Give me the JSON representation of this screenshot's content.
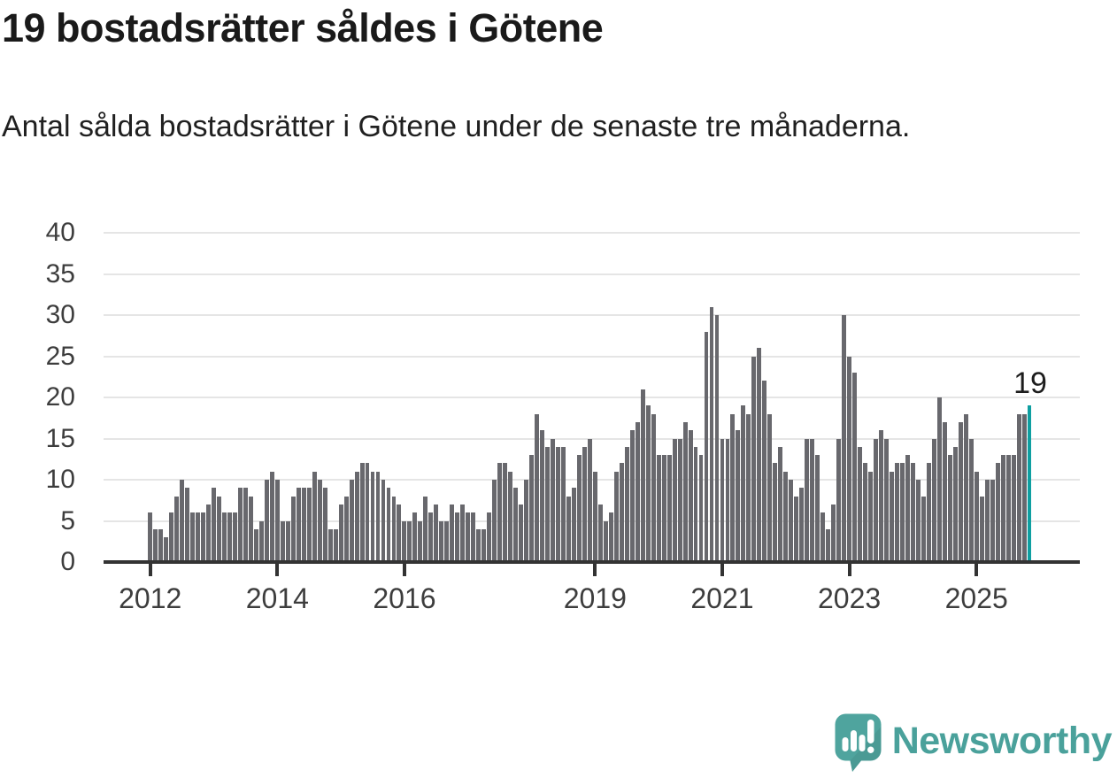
{
  "title": "19 bostadsrätter såldes i Götene",
  "subtitle": "Antal sålda bostadsrätter i Götene under de senaste tre månaderna.",
  "logo": {
    "text": "Newsworthy"
  },
  "colors": {
    "bar": "#68686d",
    "highlight_bar": "#0e9fa1",
    "gridline": "#e5e5e5",
    "axis": "#333333",
    "axis_label": "#3d3d3d",
    "title": "#1a1a1a",
    "subtitle": "#202020",
    "annotation": "#1d1d1d",
    "logo_teal": "#4aa19b"
  },
  "chart_data": {
    "type": "bar",
    "title": "19 bostadsrätter såldes i Götene",
    "subtitle": "Antal sålda bostadsrätter i Götene under de senaste tre månaderna.",
    "x_start": "2012-01",
    "x_end": "2025-11",
    "x_frequency": "monthly",
    "ylim": [
      0,
      40
    ],
    "y_ticks": [
      0,
      5,
      10,
      15,
      20,
      25,
      30,
      35,
      40
    ],
    "grid": true,
    "legend": false,
    "x_ticks": [
      {
        "label": "2012",
        "month_index": 0
      },
      {
        "label": "2014",
        "month_index": 24
      },
      {
        "label": "2016",
        "month_index": 48
      },
      {
        "label": "2019",
        "month_index": 84
      },
      {
        "label": "2021",
        "month_index": 108
      },
      {
        "label": "2023",
        "month_index": 132
      },
      {
        "label": "2025",
        "month_index": 156
      }
    ],
    "values": [
      6,
      4,
      4,
      3,
      6,
      8,
      10,
      9,
      6,
      6,
      6,
      7,
      9,
      8,
      6,
      6,
      6,
      9,
      9,
      8,
      4,
      5,
      10,
      11,
      10,
      5,
      5,
      8,
      9,
      9,
      9,
      11,
      10,
      9,
      4,
      4,
      7,
      8,
      10,
      11,
      12,
      12,
      11,
      11,
      10,
      9,
      8,
      7,
      5,
      5,
      6,
      5,
      8,
      6,
      7,
      5,
      5,
      7,
      6,
      7,
      6,
      6,
      4,
      4,
      6,
      10,
      12,
      12,
      11,
      9,
      7,
      10,
      13,
      18,
      16,
      14,
      15,
      14,
      14,
      8,
      9,
      13,
      14,
      15,
      11,
      7,
      5,
      6,
      11,
      12,
      14,
      16,
      17,
      21,
      19,
      18,
      13,
      13,
      13,
      15,
      15,
      17,
      16,
      14,
      13,
      28,
      31,
      30,
      15,
      15,
      18,
      16,
      19,
      18,
      25,
      26,
      22,
      18,
      12,
      14,
      11,
      10,
      8,
      9,
      15,
      15,
      13,
      6,
      4,
      7,
      15,
      30,
      25,
      23,
      14,
      12,
      11,
      15,
      16,
      15,
      11,
      12,
      12,
      13,
      12,
      10,
      8,
      12,
      15,
      20,
      17,
      13,
      14,
      17,
      18,
      15,
      11,
      8,
      10,
      10,
      12,
      13,
      13,
      13,
      18,
      18,
      19
    ],
    "highlight_last": true,
    "last_value_label": "19"
  }
}
